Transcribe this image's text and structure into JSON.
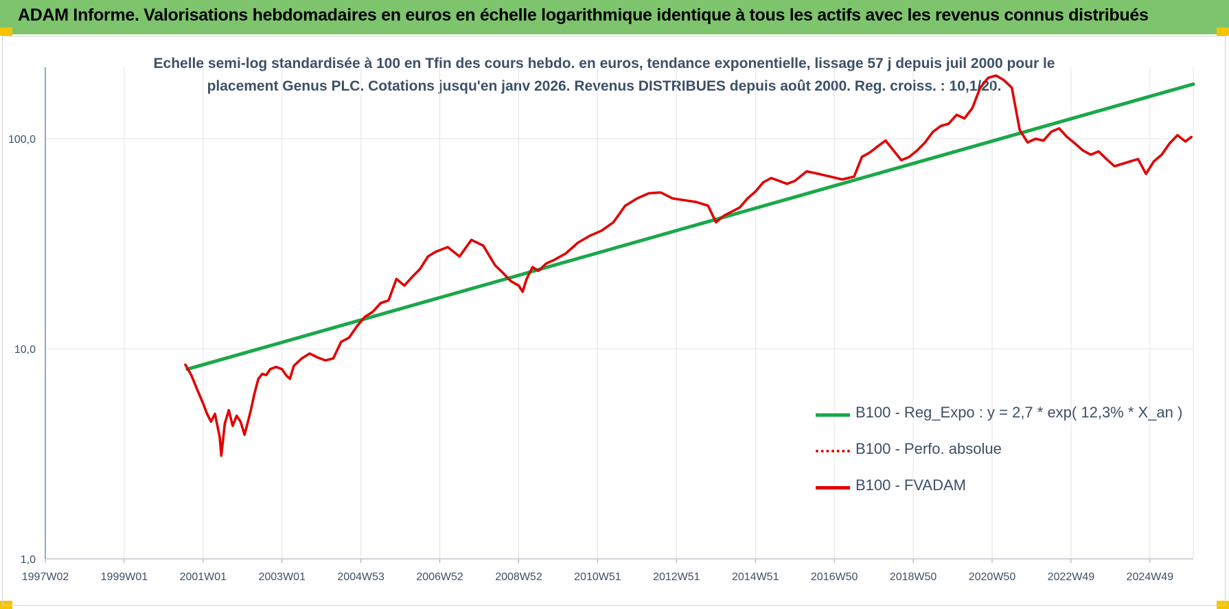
{
  "header": {
    "title": "ADAM Informe. Valorisations hebdomadaires en euros en échelle logarithmique identique à tous les actifs avec les revenus connus distribués"
  },
  "chart_data": {
    "type": "line",
    "title": "Echelle semi-log standardisée à 100 en Tfin des cours hebdo. en euros, tendance exponentielle, lissage 57 j depuis juil 2000 pour le placement Genus PLC. Cotations jusqu'en janv 2026. Revenus DISTRIBUES depuis août 2000. Reg. croiss. : 10,1/20.",
    "subtitle_lines": [
      "Echelle semi-log standardisée à 100 en Tfin des cours hebdo. en euros, tendance exponentielle, lissage 57 j depuis juil 2000 pour le",
      "placement Genus PLC. Cotations jusqu'en janv 2026. Revenus DISTRIBUES depuis août 2000. Reg. croiss. : 10,1/20."
    ],
    "y_scale": "log",
    "ylim": [
      1,
      200
    ],
    "y_ticks": [
      {
        "value": 1,
        "label": "1,0"
      },
      {
        "value": 10,
        "label": "10,0"
      },
      {
        "value": 100,
        "label": "100,0"
      }
    ],
    "xlim": [
      1997.0,
      2026.1
    ],
    "x_ticks": [
      {
        "value": 1997.0,
        "label": "1997W02"
      },
      {
        "value": 1999.0,
        "label": "1999W01"
      },
      {
        "value": 2001.0,
        "label": "2001W01"
      },
      {
        "value": 2003.0,
        "label": "2003W01"
      },
      {
        "value": 2005.0,
        "label": "2004W53"
      },
      {
        "value": 2007.0,
        "label": "2006W52"
      },
      {
        "value": 2009.0,
        "label": "2008W52"
      },
      {
        "value": 2011.0,
        "label": "2010W51"
      },
      {
        "value": 2013.0,
        "label": "2012W51"
      },
      {
        "value": 2015.0,
        "label": "2014W51"
      },
      {
        "value": 2017.0,
        "label": "2016W50"
      },
      {
        "value": 2019.0,
        "label": "2018W50"
      },
      {
        "value": 2021.0,
        "label": "2020W50"
      },
      {
        "value": 2023.0,
        "label": "2022W49"
      },
      {
        "value": 2025.0,
        "label": "2024W49"
      }
    ],
    "grid": true,
    "legend_position": "bottom-right",
    "series": [
      {
        "name": "B100 - Reg_Expo : y = 2,7 * exp( 12,3% *  X_an )",
        "color": "#1aa84a",
        "style": "solid",
        "x": [
          2000.6,
          2026.1
        ],
        "y": [
          8.0,
          182
        ]
      },
      {
        "name": "B100 - Perfo. absolue",
        "color": "#e00000",
        "style": "dotted",
        "x": [],
        "y": []
      },
      {
        "name": "B100 - FVADAM",
        "color": "#e00000",
        "style": "solid",
        "x": [
          2000.55,
          2000.7,
          2000.85,
          2001.0,
          2001.1,
          2001.2,
          2001.3,
          2001.42,
          2001.46,
          2001.55,
          2001.65,
          2001.75,
          2001.85,
          2001.95,
          2002.05,
          2002.15,
          2002.22,
          2002.3,
          2002.4,
          2002.5,
          2002.6,
          2002.7,
          2002.85,
          2003.0,
          2003.1,
          2003.2,
          2003.3,
          2003.5,
          2003.7,
          2003.9,
          2004.1,
          2004.3,
          2004.5,
          2004.7,
          2004.9,
          2005.1,
          2005.3,
          2005.5,
          2005.7,
          2005.9,
          2006.1,
          2006.3,
          2006.5,
          2006.7,
          2006.9,
          2007.2,
          2007.5,
          2007.8,
          2008.1,
          2008.4,
          2008.6,
          2008.8,
          2009.0,
          2009.1,
          2009.2,
          2009.35,
          2009.5,
          2009.7,
          2009.9,
          2010.2,
          2010.5,
          2010.8,
          2011.1,
          2011.4,
          2011.7,
          2012.0,
          2012.3,
          2012.6,
          2012.9,
          2013.2,
          2013.5,
          2013.8,
          2014.0,
          2014.2,
          2014.4,
          2014.6,
          2014.8,
          2015.0,
          2015.2,
          2015.4,
          2015.6,
          2015.8,
          2016.0,
          2016.3,
          2016.6,
          2016.9,
          2017.2,
          2017.5,
          2017.7,
          2017.9,
          2018.1,
          2018.3,
          2018.5,
          2018.7,
          2018.9,
          2019.1,
          2019.3,
          2019.5,
          2019.7,
          2019.9,
          2020.1,
          2020.3,
          2020.5,
          2020.7,
          2020.9,
          2021.1,
          2021.3,
          2021.5,
          2021.7,
          2021.9,
          2022.1,
          2022.3,
          2022.5,
          2022.7,
          2022.9,
          2023.1,
          2023.3,
          2023.5,
          2023.7,
          2023.9,
          2024.1,
          2024.3,
          2024.5,
          2024.7,
          2024.9,
          2025.1,
          2025.3,
          2025.5,
          2025.7,
          2025.9,
          2026.05
        ],
        "y": [
          8.4,
          7.5,
          6.4,
          5.5,
          4.9,
          4.5,
          4.9,
          3.8,
          3.1,
          4.4,
          5.1,
          4.3,
          4.8,
          4.5,
          3.9,
          4.6,
          5.2,
          6.1,
          7.2,
          7.6,
          7.5,
          8.0,
          8.2,
          8.0,
          7.5,
          7.2,
          8.3,
          9.0,
          9.5,
          9.1,
          8.8,
          9.0,
          10.8,
          11.3,
          12.8,
          14.2,
          15.0,
          16.5,
          17.0,
          21.5,
          20.0,
          22.0,
          24.0,
          27.5,
          29.0,
          30.5,
          27.5,
          33.0,
          31.0,
          25.0,
          23.0,
          21.0,
          20.0,
          18.7,
          21.5,
          24.5,
          23.5,
          25.5,
          26.5,
          28.5,
          32.0,
          34.5,
          36.5,
          40.0,
          48.0,
          52.0,
          55.0,
          55.5,
          52.0,
          51.0,
          50.0,
          48.0,
          40.0,
          43.0,
          45.0,
          47.0,
          52.0,
          56.0,
          62.0,
          65.0,
          63.0,
          61.0,
          63.0,
          70.0,
          68.0,
          66.0,
          64.0,
          66.0,
          82.0,
          86.0,
          92.0,
          98.0,
          88.0,
          79.0,
          82.0,
          88.0,
          96.0,
          108.0,
          115.0,
          118.0,
          130.0,
          125.0,
          140.0,
          175.0,
          195.0,
          200.0,
          190.0,
          175.0,
          110.0,
          96.0,
          100.0,
          98.0,
          108.0,
          112.0,
          102.0,
          95.0,
          88.0,
          84.0,
          87.0,
          80.0,
          74.0,
          76.0,
          78.0,
          80.0,
          68.0,
          78.0,
          84.0,
          95.0,
          104.0,
          97.0,
          102.0
        ]
      }
    ]
  }
}
